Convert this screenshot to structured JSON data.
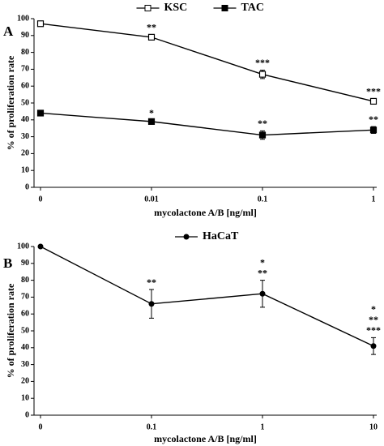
{
  "chart_data": [
    {
      "type": "line",
      "panel_label": "A",
      "xlabel": "mycolactone A/B [ng/ml]",
      "ylabel": "% of proliferation rate",
      "categories": [
        "0",
        "0.01",
        "0.1",
        "1"
      ],
      "ylim": [
        0,
        100
      ],
      "yticks": [
        0,
        10,
        20,
        30,
        40,
        50,
        60,
        70,
        80,
        90,
        100
      ],
      "legend": "top",
      "series": [
        {
          "name": "KSC",
          "color": "#000000",
          "marker": "square-open",
          "values": [
            97,
            89,
            67,
            51
          ],
          "errors": [
            0.8,
            1.5,
            2.5,
            1.5
          ],
          "annotations": [
            null,
            [
              "**"
            ],
            [
              "***"
            ],
            [
              "***"
            ]
          ]
        },
        {
          "name": "TAC",
          "color": "#000000",
          "marker": "square",
          "values": [
            44,
            39,
            31,
            34
          ],
          "errors": [
            0.5,
            0.8,
            2.5,
            2
          ],
          "annotations": [
            null,
            [
              "*"
            ],
            [
              "**"
            ],
            [
              "**"
            ]
          ]
        }
      ]
    },
    {
      "type": "line",
      "panel_label": "B",
      "xlabel": "mycolactone A/B [ng/ml]",
      "ylabel": "% of proliferation rate",
      "categories": [
        "0",
        "0.1",
        "1",
        "10"
      ],
      "ylim": [
        0,
        100
      ],
      "yticks": [
        0,
        10,
        20,
        30,
        40,
        50,
        60,
        70,
        80,
        90,
        100
      ],
      "legend": "top",
      "series": [
        {
          "name": "HaCaT",
          "color": "#000000",
          "marker": "circle",
          "values": [
            100,
            66,
            72,
            41
          ],
          "errors": [
            0,
            8.5,
            8,
            5
          ],
          "annotations": [
            null,
            [
              "**"
            ],
            [
              "*",
              "**"
            ],
            [
              "*",
              "**",
              "***"
            ]
          ]
        }
      ]
    }
  ]
}
